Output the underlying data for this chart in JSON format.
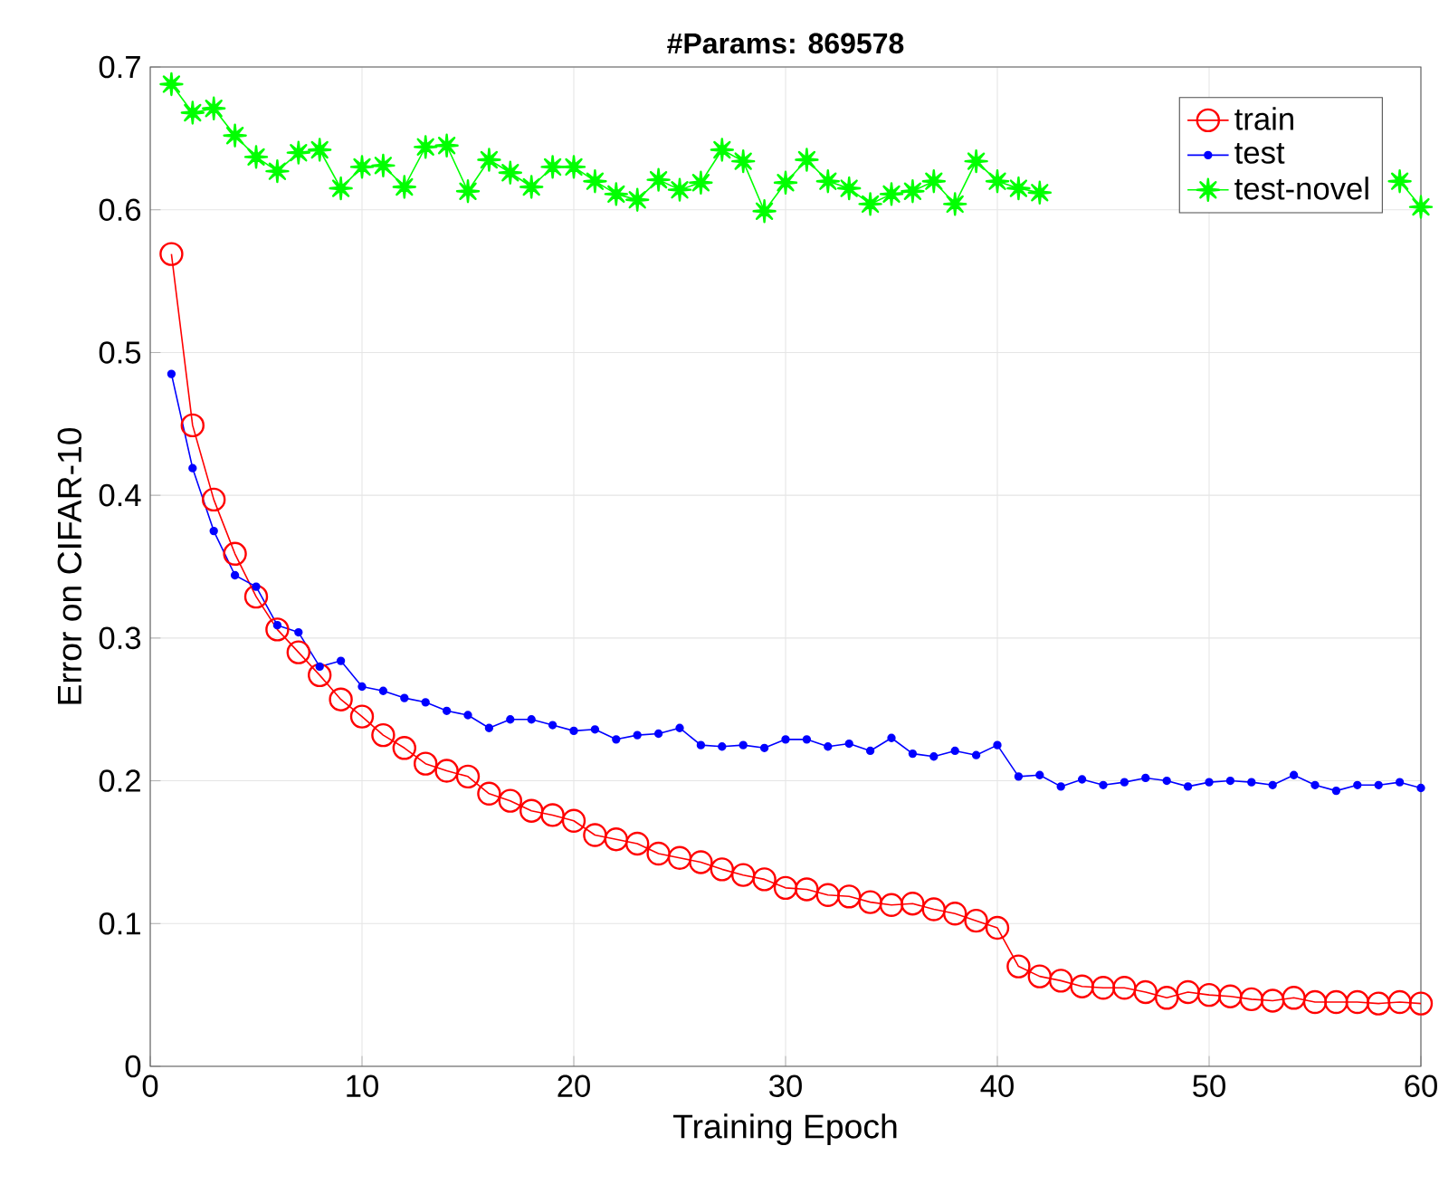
{
  "chart_data": {
    "type": "line",
    "title": "#Params: 869578",
    "xlabel": "Training Epoch",
    "ylabel": "Error on CIFAR-10",
    "x": [
      1,
      2,
      3,
      4,
      5,
      6,
      7,
      8,
      9,
      10,
      11,
      12,
      13,
      14,
      15,
      16,
      17,
      18,
      19,
      20,
      21,
      22,
      23,
      24,
      25,
      26,
      27,
      28,
      29,
      30,
      31,
      32,
      33,
      34,
      35,
      36,
      37,
      38,
      39,
      40,
      41,
      42,
      43,
      44,
      45,
      46,
      47,
      48,
      49,
      50,
      51,
      52,
      53,
      54,
      55,
      56,
      57,
      58,
      59,
      60
    ],
    "series": [
      {
        "name": "train",
        "color": "#ff0000",
        "marker": "circle",
        "values": [
          0.569,
          0.449,
          0.397,
          0.359,
          0.329,
          0.306,
          0.29,
          0.274,
          0.257,
          0.245,
          0.232,
          0.223,
          0.212,
          0.207,
          0.203,
          0.191,
          0.186,
          0.179,
          0.176,
          0.172,
          0.162,
          0.159,
          0.156,
          0.149,
          0.146,
          0.143,
          0.138,
          0.134,
          0.131,
          0.125,
          0.124,
          0.12,
          0.119,
          0.115,
          0.113,
          0.114,
          0.11,
          0.107,
          0.102,
          0.097,
          0.07,
          0.063,
          0.06,
          0.056,
          0.055,
          0.055,
          0.052,
          0.048,
          0.052,
          0.05,
          0.049,
          0.047,
          0.046,
          0.048,
          0.045,
          0.045,
          0.045,
          0.044,
          0.045,
          0.044
        ]
      },
      {
        "name": "test",
        "color": "#0000ff",
        "marker": "circle",
        "values": [
          0.485,
          0.419,
          0.375,
          0.344,
          0.336,
          0.309,
          0.304,
          0.28,
          0.284,
          0.266,
          0.263,
          0.258,
          0.255,
          0.249,
          0.246,
          0.237,
          0.243,
          0.243,
          0.239,
          0.235,
          0.236,
          0.229,
          0.232,
          0.233,
          0.237,
          0.225,
          0.224,
          0.225,
          0.223,
          0.229,
          0.229,
          0.224,
          0.226,
          0.221,
          0.23,
          0.219,
          0.217,
          0.221,
          0.218,
          0.225,
          0.203,
          0.204,
          0.196,
          0.201,
          0.197,
          0.199,
          0.202,
          0.2,
          0.196,
          0.199,
          0.2,
          0.199,
          0.197,
          0.204,
          0.197,
          0.193,
          0.197,
          0.197,
          0.199,
          0.195
        ]
      },
      {
        "name": "test-novel",
        "color": "#00ff00",
        "marker": "star",
        "values": [
          0.688,
          0.668,
          0.671,
          0.652,
          0.637,
          0.627,
          0.64,
          0.642,
          0.615,
          0.63,
          0.631,
          0.616,
          0.644,
          0.645,
          0.613,
          0.635,
          0.626,
          0.616,
          0.63,
          0.63,
          0.62,
          0.611,
          0.607,
          0.621,
          0.614,
          0.619,
          0.642,
          0.634,
          0.599,
          0.619,
          0.635,
          0.62,
          0.615,
          0.604,
          0.611,
          0.613,
          0.62,
          0.604,
          0.634,
          0.62,
          0.615,
          0.612,
          null,
          null,
          null,
          null,
          null,
          null,
          null,
          null,
          null,
          null,
          null,
          null,
          null,
          null,
          null,
          null,
          0.62,
          0.602
        ]
      }
    ],
    "xlim": [
      0,
      60
    ],
    "ylim": [
      0,
      0.7
    ],
    "xticks": [
      0,
      10,
      20,
      30,
      40,
      50,
      60
    ],
    "yticks": [
      0,
      0.1,
      0.2,
      0.3,
      0.4,
      0.5,
      0.6,
      0.7
    ],
    "grid": true,
    "legend": "top right",
    "line_style": "solid"
  }
}
